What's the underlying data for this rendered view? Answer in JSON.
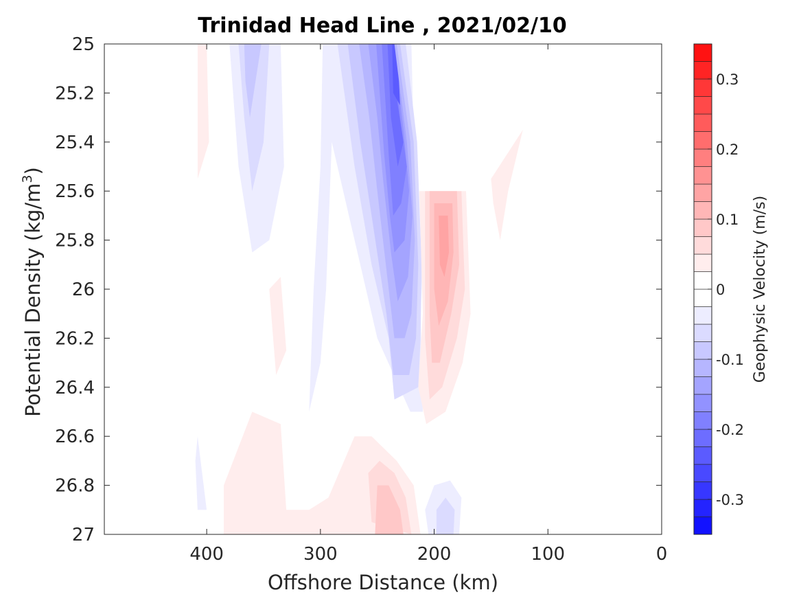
{
  "chart_data": {
    "type": "heatmap",
    "subtype": "filled-contour",
    "title": "Trinidad Head Line , 2021/02/10",
    "xlabel": "Offshore Distance (km)",
    "ylabel_main": "Potential Density (kg/m",
    "ylabel_sup": "3",
    "ylabel_close": ")",
    "xlim": [
      490,
      0
    ],
    "x_reversed": true,
    "ylim": [
      25,
      27
    ],
    "y_reversed": true,
    "x_ticks": [
      400,
      300,
      200,
      100,
      0
    ],
    "x_tick_labels": [
      "400",
      "300",
      "200",
      "100",
      "0"
    ],
    "y_ticks": [
      25,
      25.2,
      25.4,
      25.6,
      25.8,
      26,
      26.2,
      26.4,
      26.6,
      26.8,
      27
    ],
    "y_tick_labels": [
      "25",
      "25.2",
      "25.4",
      "25.6",
      "25.8",
      "26",
      "26.2",
      "26.4",
      "26.6",
      "26.8",
      "27"
    ],
    "grid": false,
    "colorbar": {
      "label": "Geophysic Velocity (m/s)",
      "min": -0.35,
      "max": 0.35,
      "step": 0.025,
      "ticks": [
        -0.3,
        -0.2,
        -0.1,
        0,
        0.1,
        0.2,
        0.3
      ],
      "tick_labels": [
        "-0.3",
        "-0.2",
        "-0.1",
        "0",
        "0.1",
        "0.2",
        "0.3"
      ],
      "color_negative": "#0000ff",
      "color_zero": "#ffffff",
      "color_positive": "#ff0000"
    },
    "regions": [
      {
        "v": 0.025,
        "points": [
          [
            408,
            25
          ],
          [
            400,
            25
          ],
          [
            398,
            25.4
          ],
          [
            408,
            25.55
          ]
        ]
      },
      {
        "v": -0.025,
        "points": [
          [
            380,
            25
          ],
          [
            335,
            25
          ],
          [
            332,
            25.5
          ],
          [
            345,
            25.8
          ],
          [
            360,
            25.85
          ],
          [
            372,
            25.5
          ]
        ]
      },
      {
        "v": -0.05,
        "points": [
          [
            372,
            25
          ],
          [
            345,
            25
          ],
          [
            350,
            25.4
          ],
          [
            360,
            25.6
          ],
          [
            367,
            25.3
          ]
        ]
      },
      {
        "v": -0.075,
        "points": [
          [
            367,
            25
          ],
          [
            352,
            25
          ],
          [
            357,
            25.15
          ],
          [
            362,
            25.3
          ],
          [
            366,
            25.15
          ]
        ]
      },
      {
        "v": -0.025,
        "points": [
          [
            298,
            25
          ],
          [
            220,
            25
          ],
          [
            218,
            25.4
          ],
          [
            215,
            25.6
          ],
          [
            210,
            25.9
          ],
          [
            212,
            26.1
          ],
          [
            210,
            26.5
          ],
          [
            221,
            26.5
          ],
          [
            250,
            26.2
          ],
          [
            265,
            25.9
          ],
          [
            290,
            25.4
          ],
          [
            295,
            26.0
          ],
          [
            300,
            26.3
          ],
          [
            310,
            26.5
          ],
          [
            306,
            26.0
          ],
          [
            300,
            25.5
          ]
        ]
      },
      {
        "v": -0.05,
        "points": [
          [
            285,
            25
          ],
          [
            225,
            25
          ],
          [
            215,
            25.4
          ],
          [
            211,
            25.9
          ],
          [
            212,
            26.2
          ],
          [
            214,
            26.4
          ],
          [
            235,
            26.45
          ],
          [
            240,
            26.2
          ],
          [
            255,
            25.9
          ],
          [
            270,
            25.5
          ]
        ]
      },
      {
        "v": -0.075,
        "points": [
          [
            276,
            25
          ],
          [
            230,
            25
          ],
          [
            218,
            25.4
          ],
          [
            214,
            25.9
          ],
          [
            216,
            26.2
          ],
          [
            222,
            26.35
          ],
          [
            236,
            26.35
          ],
          [
            242,
            26.1
          ],
          [
            255,
            25.7
          ],
          [
            265,
            25.4
          ]
        ]
      },
      {
        "v": -0.1,
        "points": [
          [
            266,
            25
          ],
          [
            233,
            25
          ],
          [
            221,
            25.4
          ],
          [
            217,
            25.8
          ],
          [
            220,
            26.1
          ],
          [
            226,
            26.2
          ],
          [
            235,
            26.2
          ],
          [
            240,
            26.0
          ],
          [
            250,
            25.6
          ],
          [
            257,
            25.3
          ]
        ]
      },
      {
        "v": -0.125,
        "points": [
          [
            258,
            25
          ],
          [
            235,
            25
          ],
          [
            224,
            25.4
          ],
          [
            219,
            25.7
          ],
          [
            223,
            25.95
          ],
          [
            232,
            26.05
          ],
          [
            238,
            25.85
          ],
          [
            245,
            25.55
          ],
          [
            250,
            25.3
          ]
        ]
      },
      {
        "v": -0.15,
        "points": [
          [
            251,
            25
          ],
          [
            236,
            25
          ],
          [
            227,
            25.35
          ],
          [
            222,
            25.6
          ],
          [
            226,
            25.8
          ],
          [
            235,
            25.85
          ],
          [
            239,
            25.7
          ],
          [
            244,
            25.45
          ]
        ]
      },
      {
        "v": -0.175,
        "points": [
          [
            246,
            25
          ],
          [
            237,
            25
          ],
          [
            230,
            25.3
          ],
          [
            224,
            25.5
          ],
          [
            229,
            25.65
          ],
          [
            236,
            25.7
          ],
          [
            240,
            25.45
          ]
        ]
      },
      {
        "v": -0.2,
        "points": [
          [
            241,
            25
          ],
          [
            237,
            25
          ],
          [
            232,
            25.25
          ],
          [
            227,
            25.4
          ],
          [
            232,
            25.5
          ],
          [
            238,
            25.3
          ]
        ]
      },
      {
        "v": -0.225,
        "points": [
          [
            237,
            25
          ],
          [
            235,
            25
          ],
          [
            231,
            25.15
          ],
          [
            230,
            25.25
          ],
          [
            236,
            25.2
          ]
        ]
      },
      {
        "v": 0.025,
        "points": [
          [
            213,
            25.6
          ],
          [
            172,
            25.6
          ],
          [
            168,
            26.1
          ],
          [
            175,
            26.3
          ],
          [
            190,
            26.5
          ],
          [
            207,
            26.55
          ],
          [
            214,
            26.4
          ],
          [
            210,
            26.1
          ]
        ]
      },
      {
        "v": 0.05,
        "points": [
          [
            208,
            25.6
          ],
          [
            176,
            25.6
          ],
          [
            173,
            26.0
          ],
          [
            180,
            26.2
          ],
          [
            193,
            26.4
          ],
          [
            204,
            26.45
          ],
          [
            208,
            26.2
          ]
        ]
      },
      {
        "v": 0.075,
        "points": [
          [
            204,
            25.6
          ],
          [
            180,
            25.6
          ],
          [
            178,
            25.9
          ],
          [
            185,
            26.1
          ],
          [
            195,
            26.3
          ],
          [
            202,
            26.3
          ],
          [
            204,
            26.1
          ]
        ]
      },
      {
        "v": 0.1,
        "points": [
          [
            200,
            25.65
          ],
          [
            184,
            25.65
          ],
          [
            183,
            25.85
          ],
          [
            188,
            26.05
          ],
          [
            196,
            26.15
          ],
          [
            200,
            26.0
          ]
        ]
      },
      {
        "v": 0.125,
        "points": [
          [
            196,
            25.7
          ],
          [
            188,
            25.7
          ],
          [
            187,
            25.85
          ],
          [
            191,
            25.95
          ],
          [
            195,
            25.9
          ]
        ]
      },
      {
        "v": 0.025,
        "points": [
          [
            150,
            25.55
          ],
          [
            122,
            25.35
          ],
          [
            135,
            25.6
          ],
          [
            142,
            25.8
          ],
          [
            148,
            25.65
          ]
        ]
      },
      {
        "v": 0.025,
        "points": [
          [
            310,
            26.9
          ],
          [
            293,
            26.85
          ],
          [
            270,
            26.6
          ],
          [
            255,
            26.6
          ],
          [
            233,
            26.7
          ],
          [
            218,
            26.8
          ],
          [
            212,
            27
          ],
          [
            385,
            27
          ],
          [
            385,
            26.8
          ],
          [
            360,
            26.5
          ],
          [
            335,
            26.55
          ],
          [
            330,
            26.9
          ]
        ]
      },
      {
        "v": 0.05,
        "points": [
          [
            255,
            26.95
          ],
          [
            258,
            26.75
          ],
          [
            248,
            26.7
          ],
          [
            235,
            26.75
          ],
          [
            225,
            26.85
          ],
          [
            220,
            27
          ]
        ]
      },
      {
        "v": 0.075,
        "points": [
          [
            252,
            27
          ],
          [
            250,
            26.8
          ],
          [
            240,
            26.8
          ],
          [
            230,
            26.9
          ],
          [
            227,
            27
          ]
        ]
      },
      {
        "v": 0.025,
        "points": [
          [
            330,
            26.25
          ],
          [
            339,
            26.35
          ],
          [
            345,
            26.0
          ],
          [
            335,
            25.95
          ]
        ]
      },
      {
        "v": -0.025,
        "points": [
          [
            408,
            26.6
          ],
          [
            400,
            26.9
          ],
          [
            408,
            26.9
          ],
          [
            410,
            26.7
          ]
        ]
      },
      {
        "v": -0.025,
        "points": [
          [
            205,
            27
          ],
          [
            178,
            27
          ],
          [
            176,
            26.85
          ],
          [
            186,
            26.78
          ],
          [
            200,
            26.8
          ],
          [
            208,
            26.9
          ]
        ]
      },
      {
        "v": -0.05,
        "points": [
          [
            198,
            27
          ],
          [
            183,
            27
          ],
          [
            182,
            26.9
          ],
          [
            190,
            26.85
          ],
          [
            198,
            26.9
          ]
        ]
      }
    ]
  }
}
